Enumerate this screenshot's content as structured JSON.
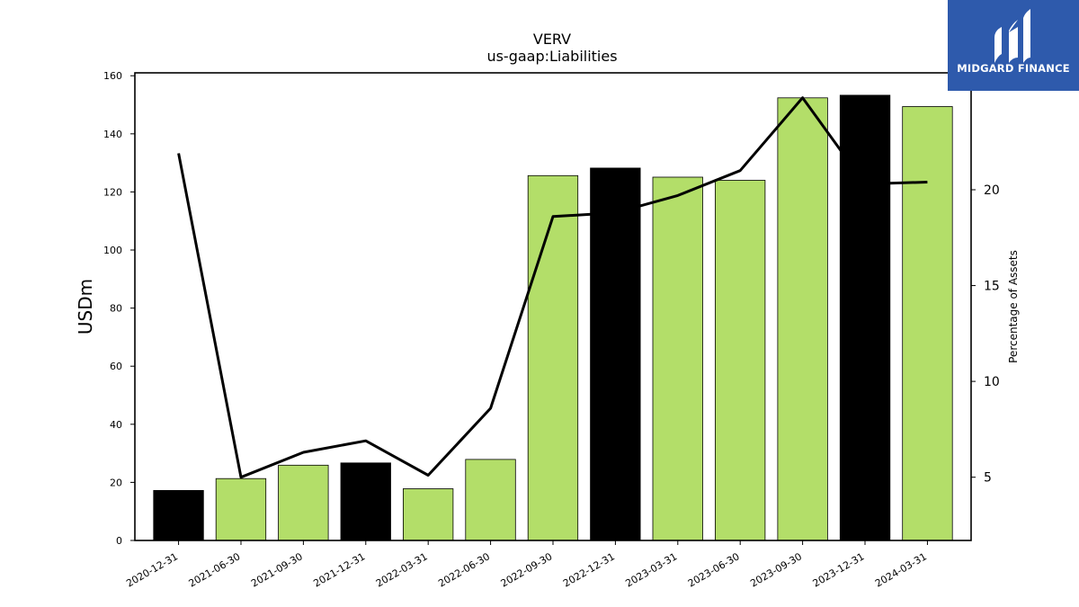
{
  "chart_data": {
    "type": "bar",
    "title": "VERV",
    "subtitle": "us-gaap:Liabilities",
    "ylabel": "USDm",
    "y2label": "Percentage of Assets",
    "ylim": [
      0,
      161
    ],
    "y2lim": [
      1.7,
      26.1
    ],
    "yticks": [
      0,
      20,
      40,
      60,
      80,
      100,
      120,
      140,
      160
    ],
    "y2ticks": [
      5,
      10,
      15,
      20
    ],
    "categories": [
      "2020-12-31",
      "2021-06-30",
      "2021-09-30",
      "2021-12-31",
      "2022-03-31",
      "2022-06-30",
      "2022-09-30",
      "2022-12-31",
      "2023-03-31",
      "2023-06-30",
      "2023-09-30",
      "2023-12-31",
      "2024-03-31"
    ],
    "series": [
      {
        "type": "bar",
        "values": [
          17.2,
          21.3,
          25.9,
          26.7,
          17.8,
          27.9,
          125.6,
          128.2,
          125.1,
          124.0,
          152.4,
          153.3,
          149.4
        ],
        "colors": [
          "#000000",
          "#b3de69",
          "#b3de69",
          "#000000",
          "#b3de69",
          "#b3de69",
          "#b3de69",
          "#000000",
          "#b3de69",
          "#b3de69",
          "#b3de69",
          "#000000",
          "#b3de69"
        ]
      },
      {
        "type": "line",
        "axis": "right",
        "color": "#000000",
        "values": [
          21.9,
          5.0,
          6.3,
          6.9,
          5.1,
          8.6,
          18.6,
          18.8,
          19.7,
          21.0,
          24.8,
          20.3,
          20.4
        ]
      }
    ],
    "grid": false
  },
  "logo": {
    "name": "MIDGARD FINANCE",
    "background": "#2e5aac"
  }
}
